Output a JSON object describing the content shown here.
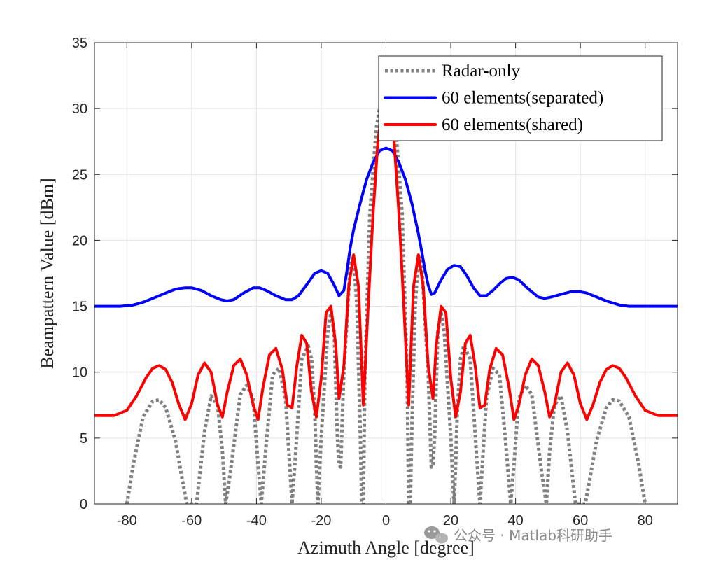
{
  "chart_data": {
    "type": "line",
    "title": "",
    "xlabel": "Azimuth Angle [degree]",
    "ylabel": "Beampattern Value [dBm]",
    "xlim": [
      -90,
      90
    ],
    "ylim": [
      0,
      35
    ],
    "xticks": [
      "-80",
      "-60",
      "-40",
      "-20",
      "0",
      "20",
      "40",
      "60",
      "80"
    ],
    "xtick_values": [
      -80,
      -60,
      -40,
      -20,
      0,
      20,
      40,
      60,
      80
    ],
    "yticks": [
      "0",
      "5",
      "10",
      "15",
      "20",
      "25",
      "30",
      "35"
    ],
    "ytick_values": [
      0,
      5,
      10,
      15,
      20,
      25,
      30,
      35
    ],
    "grid": true,
    "legend_position": "top-right",
    "series": [
      {
        "name": "Radar-only",
        "color": "#808080",
        "style": "dotted",
        "x": [
          -80,
          -78,
          -75,
          -72,
          -70,
          -68,
          -65,
          -63,
          -61.5,
          -60,
          -58.5,
          -56,
          -54,
          -52,
          -50.5,
          -49.5,
          -48,
          -45,
          -43,
          -41,
          -39.5,
          -38.5,
          -37,
          -35,
          -33,
          -31,
          -30,
          -29,
          -28,
          -26,
          -24,
          -23,
          -22,
          -21.5,
          -21,
          -20,
          -18,
          -17,
          -16,
          -15.5,
          -15,
          -14.5,
          -14,
          -13,
          -11,
          -10,
          -9,
          -8,
          -7.5,
          -7,
          -6.5,
          -5,
          -3,
          -1,
          0,
          1,
          3,
          5,
          6.5,
          7,
          7.5,
          8,
          9,
          10,
          11,
          13,
          14,
          14.5,
          15,
          15.5,
          16,
          17,
          18,
          20,
          21,
          21.5,
          22,
          23,
          24,
          26,
          28,
          29,
          30,
          31,
          33,
          35,
          37,
          38.5,
          39.5,
          41,
          43,
          45,
          48,
          49.5,
          50.5,
          52,
          54,
          56,
          58.5,
          60,
          61.5,
          63,
          65,
          68,
          70,
          72,
          75,
          78,
          80
        ],
        "y": [
          0,
          3,
          6.6,
          7.8,
          7.9,
          7.3,
          4.8,
          2,
          0,
          0,
          0,
          5.5,
          8.2,
          7.5,
          4,
          0,
          2.5,
          8.3,
          9.0,
          8,
          3,
          0,
          4.5,
          9.8,
          10.3,
          8,
          4,
          0,
          3.5,
          11,
          12.0,
          11,
          7,
          3,
          0,
          5,
          13,
          14.5,
          13,
          9,
          5,
          3,
          2.8,
          10,
          18.3,
          18.8,
          15,
          6,
          0,
          0,
          10,
          22,
          28.5,
          31.5,
          32,
          31.5,
          28.5,
          22,
          10,
          0,
          0,
          6,
          15,
          18.8,
          18.3,
          10,
          2.8,
          3,
          5,
          9,
          13,
          14.5,
          13,
          5,
          0,
          3,
          7,
          11,
          12.0,
          11,
          3.5,
          0,
          4,
          8,
          10.3,
          9.8,
          4.5,
          0,
          3,
          8,
          9.0,
          8.3,
          2.5,
          0,
          4,
          7.5,
          8.2,
          5.5,
          0,
          0,
          0,
          2,
          4.8,
          7.3,
          7.9,
          7.8,
          6.6,
          3,
          0
        ]
      },
      {
        "name": "60 elements(separated)",
        "color": "#0000ff",
        "style": "solid",
        "x": [
          -90,
          -82,
          -78,
          -75,
          -72,
          -68,
          -65,
          -62,
          -60,
          -57,
          -54,
          -51,
          -49,
          -47,
          -44,
          -41,
          -39,
          -37,
          -34,
          -31,
          -29,
          -27,
          -24,
          -22,
          -20,
          -18,
          -16,
          -14.5,
          -13,
          -12,
          -11,
          -10,
          -8,
          -6,
          -4,
          -2,
          0,
          2,
          4,
          6,
          8,
          10,
          11,
          12,
          13,
          14,
          15,
          17,
          19,
          21,
          23,
          25,
          27,
          29,
          31,
          33,
          35,
          37,
          39,
          41,
          44,
          47,
          49,
          51,
          54,
          57,
          60,
          62,
          65,
          68,
          72,
          75,
          78,
          82,
          90
        ],
        "y": [
          15.0,
          15.0,
          15.1,
          15.3,
          15.6,
          16.0,
          16.3,
          16.4,
          16.4,
          16.2,
          15.8,
          15.5,
          15.4,
          15.5,
          16.0,
          16.4,
          16.4,
          16.2,
          15.8,
          15.5,
          15.5,
          15.8,
          16.8,
          17.5,
          17.7,
          17.5,
          16.6,
          15.8,
          16.2,
          17.8,
          19.5,
          20.8,
          22.8,
          24.6,
          25.9,
          26.8,
          27.0,
          26.8,
          25.9,
          24.6,
          22.8,
          20.5,
          19.2,
          17.8,
          16.6,
          15.9,
          16.0,
          17.0,
          17.8,
          18.1,
          18.0,
          17.3,
          16.4,
          15.8,
          15.8,
          16.2,
          16.7,
          17.1,
          17.2,
          17.0,
          16.3,
          15.7,
          15.6,
          15.7,
          15.9,
          16.1,
          16.1,
          16.0,
          15.7,
          15.4,
          15.1,
          15.0,
          15.0,
          15.0,
          15.0
        ]
      },
      {
        "name": "60 elements(shared)",
        "color": "#ff0000",
        "style": "solid",
        "x": [
          -90,
          -84,
          -80,
          -77,
          -74,
          -72,
          -70,
          -68,
          -66,
          -64,
          -62,
          -60,
          -58,
          -56,
          -54,
          -52,
          -50.5,
          -49,
          -47,
          -45,
          -43,
          -41,
          -39.5,
          -38,
          -36,
          -34,
          -32,
          -30.5,
          -29,
          -27.5,
          -26,
          -24.5,
          -23,
          -21.5,
          -20,
          -18.5,
          -17,
          -15.5,
          -14.5,
          -13,
          -11.5,
          -10,
          -8.5,
          -7,
          -5.5,
          -4,
          -2.5,
          -1,
          0,
          1,
          2.5,
          4,
          5.5,
          7,
          8.5,
          10,
          11.5,
          13,
          14.5,
          15.5,
          17,
          18.5,
          20,
          21.5,
          23,
          24.5,
          26,
          27.5,
          29,
          30.5,
          32,
          34,
          36,
          38,
          39.5,
          41,
          43,
          45,
          47,
          49,
          50.5,
          52,
          54,
          56,
          58,
          60,
          62,
          64,
          66,
          68,
          70,
          72,
          74,
          77,
          80,
          84,
          90
        ],
        "y": [
          6.7,
          6.7,
          7.1,
          8.2,
          9.6,
          10.3,
          10.5,
          10.2,
          9.2,
          7.6,
          6.4,
          7.6,
          9.8,
          10.7,
          10.0,
          7.5,
          6.6,
          8.5,
          10.5,
          11.0,
          9.8,
          7.5,
          6.4,
          8.8,
          11.3,
          11.8,
          10.2,
          7.5,
          7.3,
          10.5,
          12.8,
          12.2,
          8.5,
          6.6,
          9.5,
          14.5,
          15.0,
          12.0,
          8.0,
          10.5,
          16.5,
          18.9,
          16.5,
          7.5,
          15.0,
          22.0,
          27.5,
          30.5,
          31.0,
          30.5,
          27.5,
          22.0,
          15.0,
          7.5,
          16.5,
          18.9,
          16.5,
          10.5,
          8.0,
          12.0,
          15.0,
          14.5,
          9.5,
          6.6,
          8.5,
          12.2,
          12.8,
          10.5,
          7.3,
          7.5,
          10.2,
          11.8,
          11.3,
          8.8,
          6.4,
          7.5,
          9.8,
          11.0,
          10.5,
          8.5,
          6.6,
          7.5,
          10.0,
          10.7,
          9.8,
          7.6,
          6.4,
          7.6,
          9.2,
          10.2,
          10.5,
          10.3,
          9.6,
          8.2,
          7.1,
          6.7,
          6.7
        ]
      }
    ]
  },
  "watermark": {
    "text": "公众号 · Matlab科研助手",
    "icon": "wechat-icon"
  }
}
